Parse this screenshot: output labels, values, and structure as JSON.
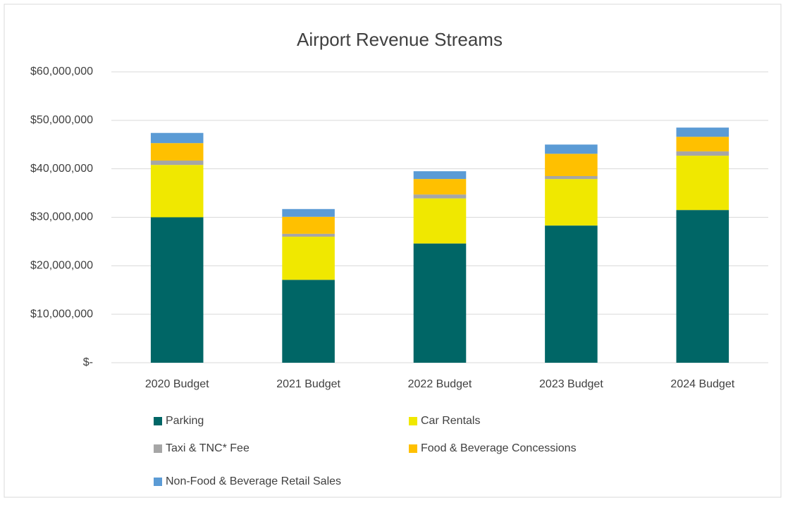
{
  "chart_data": {
    "type": "stacked_bar",
    "title": "Airport Revenue Streams",
    "categories": [
      "2020 Budget",
      "2021 Budget",
      "2022 Budget",
      "2023 Budget",
      "2024 Budget"
    ],
    "series": [
      {
        "name": "Parking",
        "color": "#006666",
        "values": [
          30000000,
          17100000,
          24600000,
          28300000,
          31500000
        ]
      },
      {
        "name": "Car Rentals",
        "color": "#f0e800",
        "values": [
          10800000,
          8900000,
          9300000,
          9600000,
          11200000
        ]
      },
      {
        "name": "Taxi & TNC* Fee",
        "color": "#a6a6a6",
        "values": [
          900000,
          600000,
          800000,
          600000,
          900000
        ]
      },
      {
        "name": "Food & Beverage Concessions",
        "color": "#ffc000",
        "values": [
          3600000,
          3500000,
          3200000,
          4600000,
          3000000
        ]
      },
      {
        "name": "Non-Food & Beverage Retail Sales",
        "color": "#5b9bd5",
        "values": [
          2100000,
          1600000,
          1600000,
          1900000,
          1900000
        ]
      }
    ],
    "ylim": [
      0,
      60000000
    ],
    "yticks": [
      {
        "value": 0,
        "label": "$-"
      },
      {
        "value": 10000000,
        "label": "$10,000,000"
      },
      {
        "value": 20000000,
        "label": "$20,000,000"
      },
      {
        "value": 30000000,
        "label": "$30,000,000"
      },
      {
        "value": 40000000,
        "label": "$40,000,000"
      },
      {
        "value": 50000000,
        "label": "$50,000,000"
      },
      {
        "value": 60000000,
        "label": "$60,000,000"
      }
    ],
    "grid": true,
    "legend": "bottom"
  }
}
